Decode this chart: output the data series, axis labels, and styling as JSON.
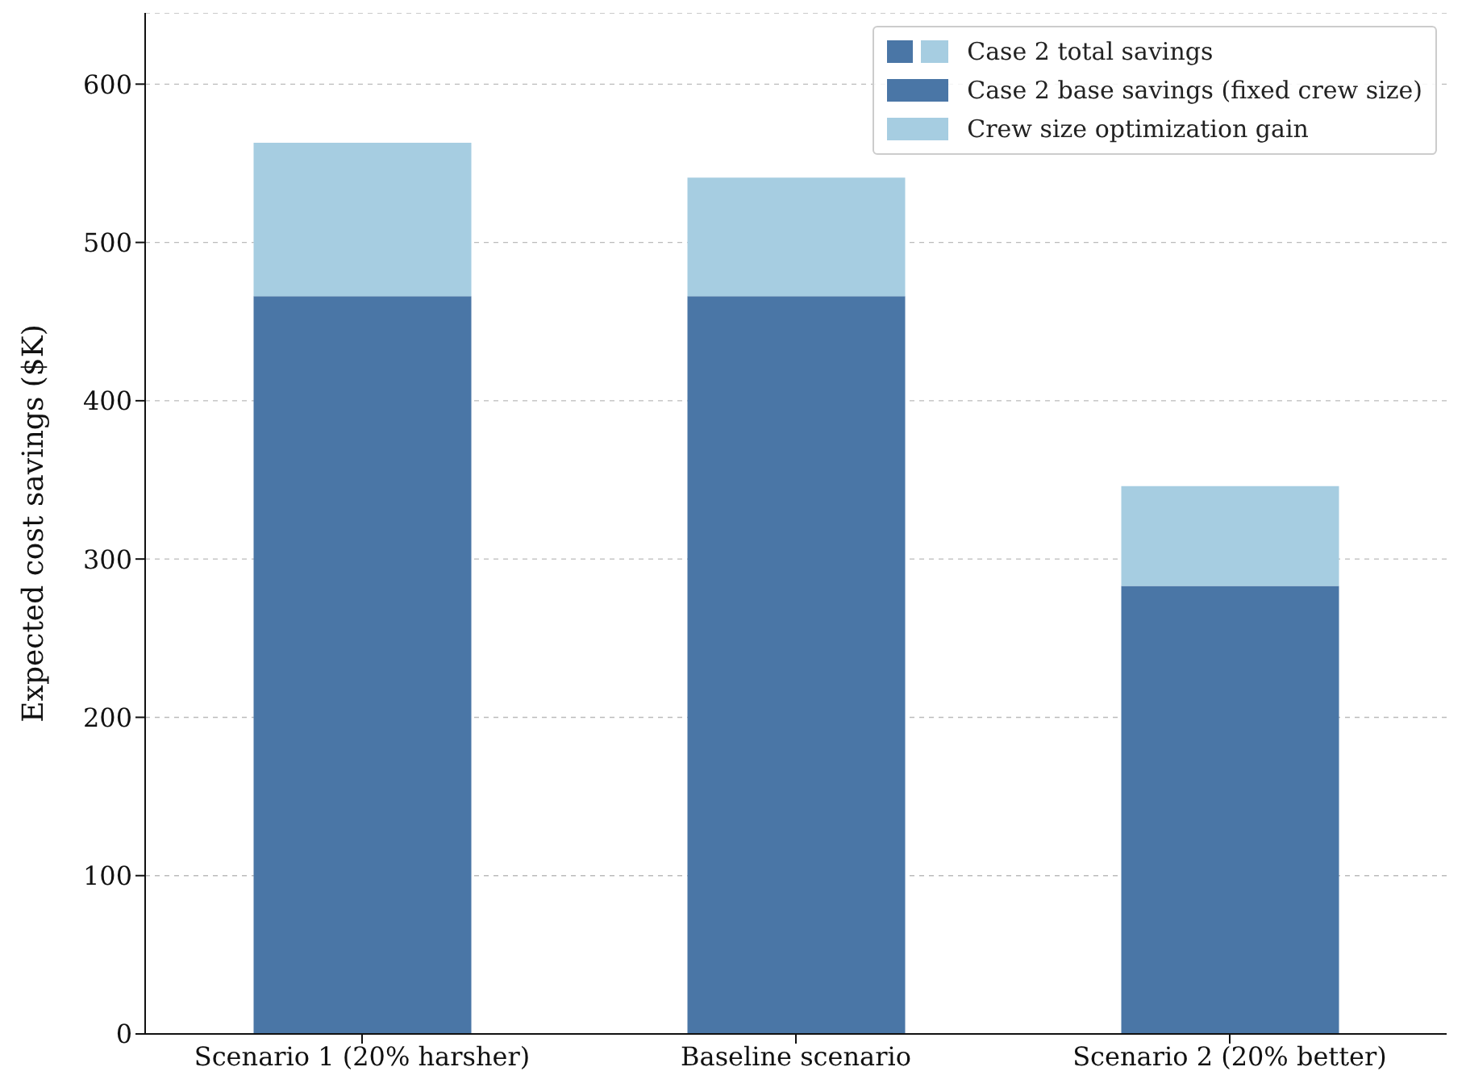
{
  "chart_data": {
    "type": "bar",
    "stacked": true,
    "ylabel": "Expected cost savings ($K)",
    "categories": [
      "Scenario 1 (20% harsher)",
      "Baseline scenario",
      "Scenario 2 (20% better)"
    ],
    "series": [
      {
        "name": "Case 2 total savings",
        "values": [
          null,
          null,
          null
        ]
      },
      {
        "name": "Case 2 base savings (fixed crew size)",
        "color": "#4a76a6",
        "values": [
          466,
          466,
          283
        ]
      },
      {
        "name": "Crew size optimization gain",
        "color": "#a6cde1",
        "values": [
          97,
          75,
          63
        ]
      }
    ],
    "ylim": [
      0,
      645
    ],
    "yticks": [
      0,
      100,
      200,
      300,
      400,
      500,
      600
    ],
    "grid": "y",
    "legend": "top right"
  }
}
